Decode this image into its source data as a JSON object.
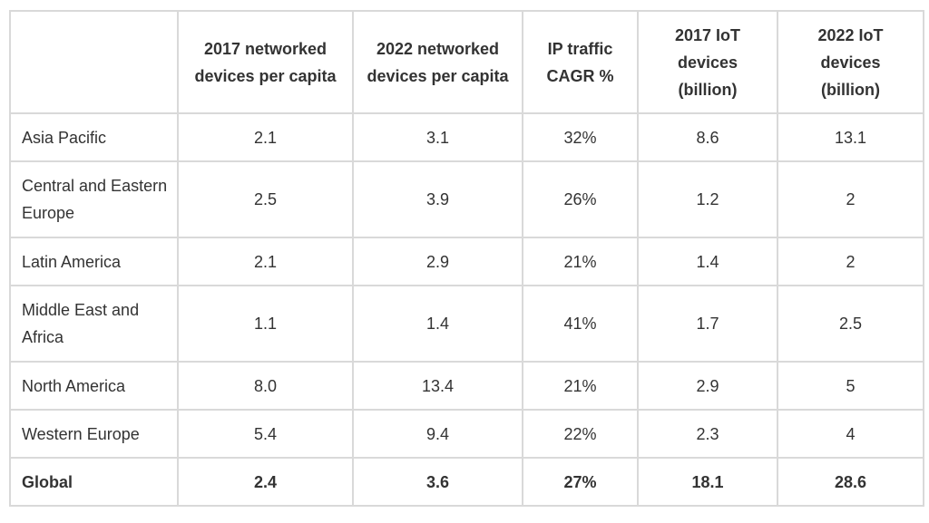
{
  "table": {
    "headers": [
      "",
      "2017 networked devices per capita",
      "2022 networked devices per capita",
      "IP traffic CAGR %",
      "2017 IoT devices (billion)",
      "2022 IoT devices (billion)"
    ],
    "rows": [
      [
        "Asia Pacific",
        "2.1",
        "3.1",
        "32%",
        "8.6",
        "13.1"
      ],
      [
        "Central and Eastern Europe",
        "2.5",
        "3.9",
        "26%",
        "1.2",
        "2"
      ],
      [
        "Latin America",
        "2.1",
        "2.9",
        "21%",
        "1.4",
        "2"
      ],
      [
        "Middle East and Africa",
        "1.1",
        "1.4",
        "41%",
        "1.7",
        "2.5"
      ],
      [
        "North America",
        "8.0",
        "13.4",
        "21%",
        "2.9",
        "5"
      ],
      [
        "Western Europe",
        "5.4",
        "9.4",
        "22%",
        "2.3",
        "4"
      ],
      [
        "Global",
        "2.4",
        "3.6",
        "27%",
        "18.1",
        "28.6"
      ]
    ]
  }
}
